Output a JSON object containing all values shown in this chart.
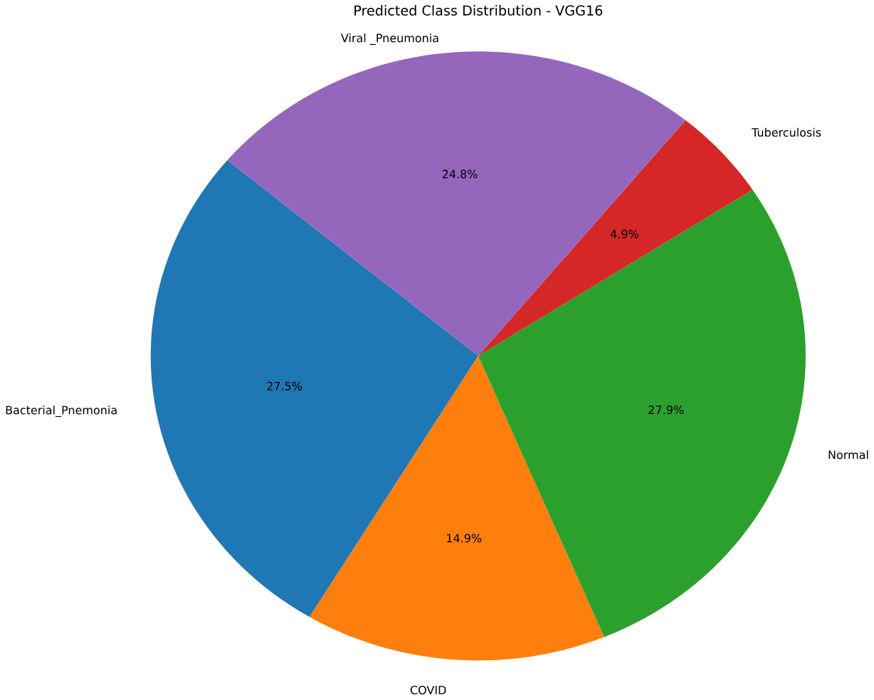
{
  "chart_data": {
    "type": "pie",
    "title": "Predicted Class Distribution - VGG16",
    "categories": [
      "Bacterial_Pnemonia",
      "COVID",
      "Normal",
      "Tuberculosis",
      "Viral _Pneumonia"
    ],
    "values": [
      27.5,
      14.9,
      27.9,
      4.9,
      24.8
    ],
    "colors": [
      "#1f77b4",
      "#ff7f0e",
      "#2ca02c",
      "#d62728",
      "#9467bd"
    ],
    "value_labels": [
      "27.5%",
      "14.9%",
      "27.9%",
      "4.9%",
      "24.8%"
    ]
  }
}
